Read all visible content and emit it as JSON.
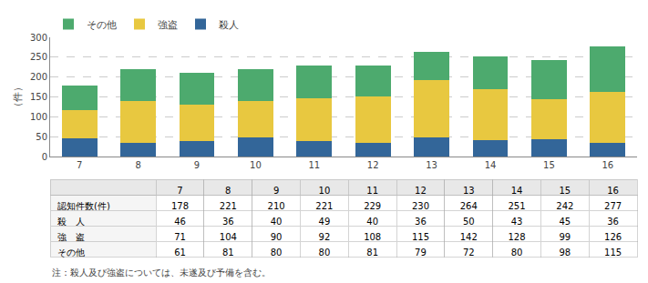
{
  "chart_data": [
    {
      "type": "bar",
      "stacked": true,
      "categories": [
        "7",
        "8",
        "9",
        "10",
        "11",
        "12",
        "13",
        "14",
        "15",
        "16"
      ],
      "series": [
        {
          "name": "殺人",
          "color": "#336699",
          "values": [
            46,
            36,
            40,
            49,
            40,
            36,
            50,
            43,
            45,
            36
          ]
        },
        {
          "name": "強盗",
          "color": "#e8c840",
          "values": [
            71,
            104,
            90,
            92,
            108,
            115,
            142,
            128,
            99,
            126
          ]
        },
        {
          "name": "その他",
          "color": "#4daa6e",
          "values": [
            61,
            81,
            80,
            80,
            81,
            79,
            72,
            80,
            98,
            115
          ]
        }
      ],
      "ylabel": "（件）",
      "ylim": [
        0,
        300
      ],
      "yticks": [
        0,
        50,
        100,
        150,
        200,
        250,
        300
      ],
      "grid": true,
      "legend": "upper left",
      "annotations": [
        "注：殺人及び強盗については、未遂及び予備を含む。"
      ]
    },
    {
      "type": "table",
      "categories": [
        "7",
        "8",
        "9",
        "10",
        "11",
        "12",
        "13",
        "14",
        "15",
        "16"
      ],
      "series": [
        {
          "name": "認知件数(件)",
          "values": [
            178,
            221,
            210,
            221,
            229,
            230,
            264,
            251,
            242,
            277
          ]
        },
        {
          "name": "殺　人",
          "values": [
            46,
            36,
            40,
            49,
            40,
            36,
            50,
            43,
            45,
            36
          ]
        },
        {
          "name": "強　盗",
          "values": [
            71,
            104,
            90,
            92,
            108,
            115,
            142,
            128,
            99,
            126
          ]
        },
        {
          "name": "その他",
          "values": [
            61,
            81,
            80,
            80,
            81,
            79,
            72,
            80,
            98,
            115
          ]
        }
      ]
    }
  ]
}
